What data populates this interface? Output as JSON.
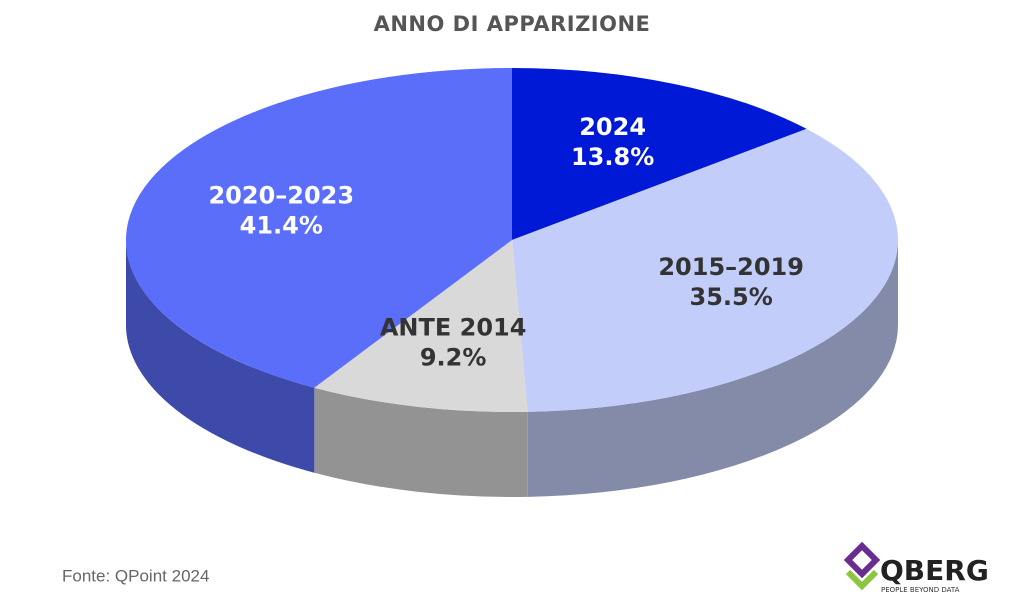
{
  "chart_data": {
    "type": "pie",
    "title": "ANNO DI APPARIZIONE",
    "categories": [
      "2024",
      "2015–2019",
      "ANTE 2014",
      "2020–2023"
    ],
    "values": [
      13.8,
      35.5,
      9.2,
      41.4
    ],
    "value_labels": [
      "13.8%",
      "35.5%",
      "9.2%",
      "41.4%"
    ],
    "colors": [
      "#0019d6",
      "#c3cdfa",
      "#d9d9d9",
      "#5a6ef9"
    ],
    "source": "Fonte: QPoint 2024"
  },
  "logo": {
    "name": "QBERG",
    "tagline": "PEOPLE BEYOND DATA"
  }
}
